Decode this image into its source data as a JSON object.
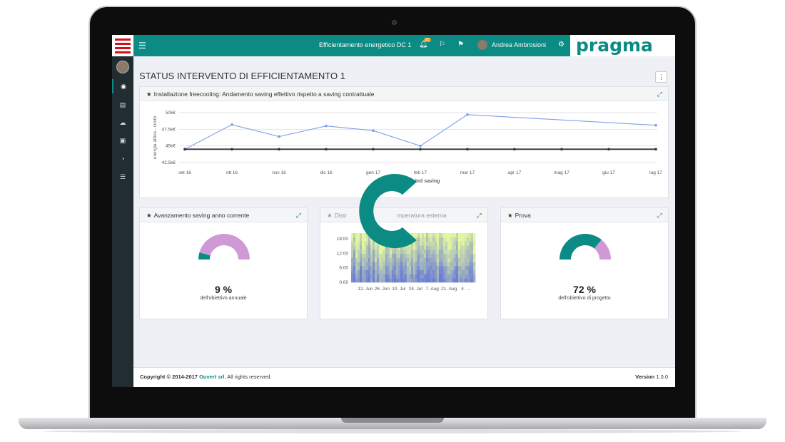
{
  "app": {
    "window_title": "Efficientamento energetico DC 1",
    "notification_count": "25",
    "user_name": "Andrea Ambrosioni",
    "brand": "pragma",
    "brand_color": "#0b8b84",
    "page_title": "STATUS INTERVENTO DI EFFICIENTAMENTO 1",
    "menu_glyph": "⋮"
  },
  "sidebar": {
    "items": [
      {
        "icon": "dashboard-icon",
        "glyph": "◉"
      },
      {
        "icon": "building-icon",
        "glyph": "▤"
      },
      {
        "icon": "cloud-icon",
        "glyph": "☁"
      },
      {
        "icon": "document-icon",
        "glyph": "▣"
      },
      {
        "icon": "pie-chart-icon",
        "glyph": "◔"
      },
      {
        "icon": "list-icon",
        "glyph": "☰"
      }
    ]
  },
  "panels": {
    "line_chart": {
      "title": "Installazione freecooling: Andamento saving effettivo rispetto a saving contrattuale",
      "legend_text": "ected saving"
    },
    "gauge_annual": {
      "title": "Avanzamento saving anno corrente",
      "value": "9 %",
      "label": "dell'obiettivo annuale"
    },
    "heatmap": {
      "title_left": "Distr",
      "title_right": "mperatura esterna"
    },
    "gauge_project": {
      "title": "Prova",
      "value": "72 %",
      "label": "dell'obiettivo di progetto"
    }
  },
  "footer": {
    "copyright": "Copyright © 2014-2017 ",
    "company": "Ouvert srl.",
    "rights": " All rights reserved.",
    "version_label": "Version",
    "version": " 1.0.0"
  },
  "chart_data": [
    {
      "type": "line",
      "title": "Installazione freecooling: Andamento saving effettivo rispetto a saving contrattuale",
      "ylabel": "energia attiva - costo",
      "categories": [
        "set 16",
        "ott 16",
        "nov 16",
        "dic 16",
        "gen 17",
        "feb 17",
        "mar 17",
        "apr 17",
        "mag 17",
        "giu 17",
        "lug 17"
      ],
      "ytick_labels": [
        "42.5k€",
        "45k€",
        "47.5k€",
        "50k€"
      ],
      "ylim": [
        42500,
        50000
      ],
      "series": [
        {
          "color": "#7f9fe8",
          "values": [
            44500,
            48200,
            46400,
            48000,
            47300,
            45000,
            49700,
            null,
            null,
            null,
            48100
          ],
          "x_index": [
            0,
            1,
            2,
            3,
            4,
            5,
            6,
            null,
            null,
            null,
            10
          ]
        },
        {
          "color": "#333333",
          "values": [
            44500,
            44500,
            44500,
            44500,
            44500,
            44500,
            44500,
            44500,
            44500,
            44500,
            44500
          ]
        }
      ],
      "legend": [
        "ected saving"
      ],
      "grid": true
    },
    {
      "type": "gauge",
      "value": 9,
      "max": 100,
      "colors": {
        "fill": "#0b8b84",
        "rest": "#cf99d6"
      }
    },
    {
      "type": "heatmap",
      "x_tick_labels": [
        "12. Jun",
        "26. Jun",
        "10. Jul",
        "24. Jul",
        "7. Aug",
        "21. Aug",
        "4. ..."
      ],
      "y_tick_labels": [
        "0:00",
        "6:00",
        "12:00",
        "18:00"
      ],
      "colors": [
        "#6d7fd4",
        "#e3f7a0"
      ]
    },
    {
      "type": "gauge",
      "value": 72,
      "max": 100,
      "colors": {
        "fill": "#0b8b84",
        "rest": "#cf99d6"
      }
    }
  ]
}
